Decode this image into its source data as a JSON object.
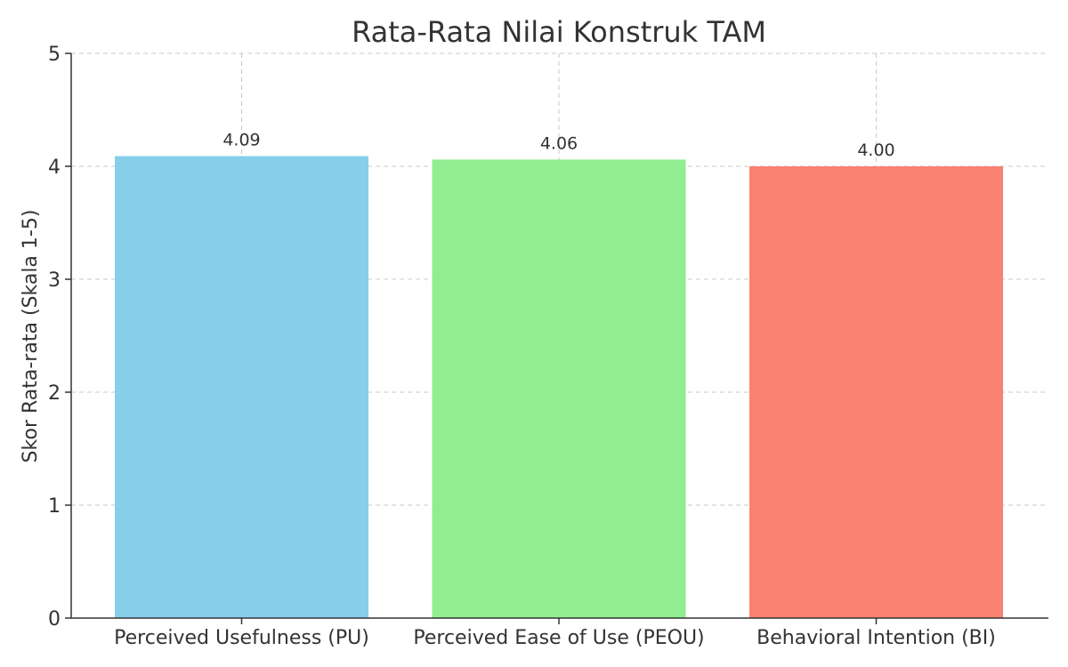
{
  "chart_data": {
    "type": "bar",
    "title": "Rata-Rata Nilai Konstruk TAM",
    "xlabel": "",
    "ylabel": "Skor Rata-rata (Skala 1-5)",
    "categories": [
      "Perceived Usefulness (PU)",
      "Perceived Ease of Use (PEOU)",
      "Behavioral Intention (BI)"
    ],
    "values": [
      4.09,
      4.06,
      4.0
    ],
    "data_labels": [
      "4.09",
      "4.06",
      "4.00"
    ],
    "colors": [
      "#87CEEB",
      "#90EE90",
      "#FA8072"
    ],
    "ylim": [
      0,
      5
    ],
    "yticks": [
      "0",
      "1",
      "2",
      "3",
      "4",
      "5"
    ],
    "grid": true
  }
}
